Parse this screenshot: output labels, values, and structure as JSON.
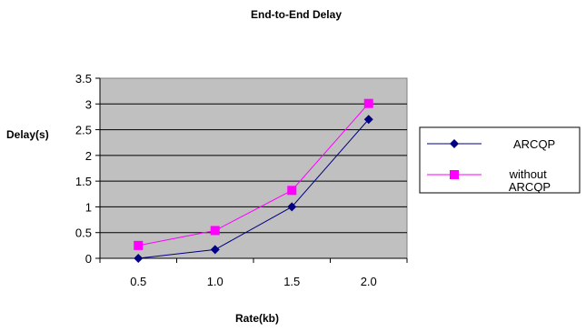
{
  "chart_data": {
    "type": "line",
    "title": "End-to-End Delay",
    "xlabel": "Rate(kb)",
    "ylabel": "Delay(s)",
    "categories": [
      "0.5",
      "1.0",
      "1.5",
      "2.0"
    ],
    "ylim": [
      0,
      3.5
    ],
    "yticks": [
      "0",
      "0.5",
      "1",
      "1.5",
      "2",
      "2.5",
      "3",
      "3.5"
    ],
    "grid": true,
    "legend_position": "right",
    "series": [
      {
        "name": "ARCQP",
        "values": [
          0,
          0.17,
          1.0,
          2.7
        ],
        "color": "#000080",
        "marker": "diamond"
      },
      {
        "name": "without ARCQP",
        "values": [
          0.25,
          0.54,
          1.32,
          3.01
        ],
        "color": "#ff00ff",
        "marker": "square"
      }
    ],
    "plot_background": "#c0c0c0"
  }
}
